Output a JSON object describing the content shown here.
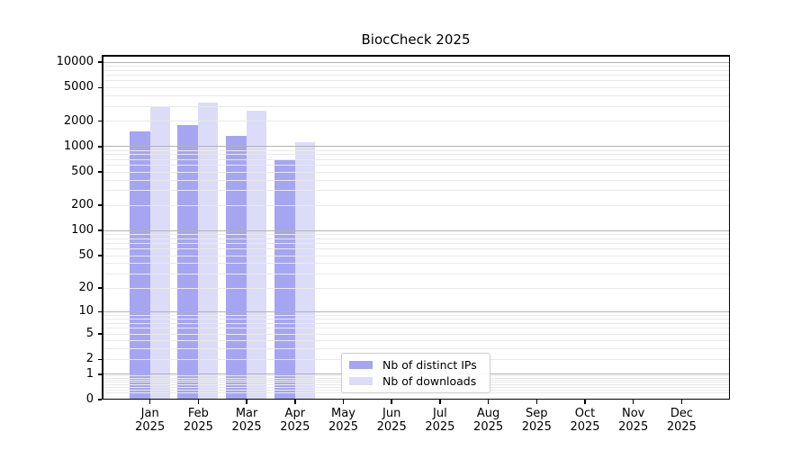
{
  "chart_data": {
    "type": "bar",
    "title": "BiocCheck 2025",
    "categories": [
      "Jan 2025",
      "Feb 2025",
      "Mar 2025",
      "Apr 2025",
      "May 2025",
      "Jun 2025",
      "Jul 2025",
      "Aug 2025",
      "Sep 2025",
      "Oct 2025",
      "Nov 2025",
      "Dec 2025"
    ],
    "series": [
      {
        "name": "Nb of distinct IPs",
        "color": "#a5a5f2",
        "values": [
          1520,
          1790,
          1330,
          690,
          0,
          0,
          0,
          0,
          0,
          0,
          0,
          0
        ]
      },
      {
        "name": "Nb of downloads",
        "color": "#dcdcf8",
        "values": [
          2980,
          3310,
          2670,
          1140,
          0,
          0,
          0,
          0,
          0,
          0,
          0,
          0
        ]
      }
    ],
    "yscale": "log1p",
    "y_ticks": [
      0,
      1,
      2,
      5,
      10,
      20,
      50,
      100,
      200,
      500,
      1000,
      2000,
      5000,
      10000
    ],
    "ylim": [
      0,
      12200
    ],
    "xlabel": "",
    "ylabel": "",
    "grid": "both",
    "legend_location": "lower center"
  }
}
